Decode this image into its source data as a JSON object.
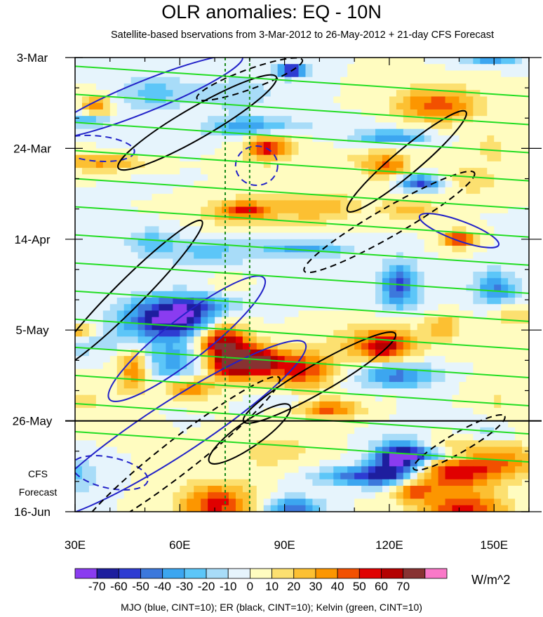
{
  "chart_data": {
    "type": "heatmap",
    "title": "OLR anomalies: EQ - 10N",
    "subtitle": "Satellite-based bservations from 3-Mar-2012 to 26-May-2012 + 21-day CFS Forecast",
    "x_ticks": [
      "30E",
      "60E",
      "90E",
      "120E",
      "150E"
    ],
    "x_tick_values": [
      30,
      60,
      90,
      120,
      150
    ],
    "xlim": [
      30,
      160
    ],
    "y_ticks": [
      "3-Mar",
      "24-Mar",
      "14-Apr",
      "5-May",
      "26-May",
      "16-Jun"
    ],
    "y_tick_values": [
      0,
      21,
      42,
      63,
      84,
      105
    ],
    "ylim": [
      0,
      105
    ],
    "observation_end_day": 84,
    "forecast_label": [
      "CFS",
      "Forecast"
    ],
    "colorbar_labels": [
      "-70",
      "-60",
      "-50",
      "-40",
      "-30",
      "-20",
      "-10",
      "0",
      "10",
      "20",
      "30",
      "40",
      "50",
      "60",
      "70"
    ],
    "colorbar_values": [
      -70,
      -60,
      -50,
      -40,
      -30,
      -20,
      -10,
      0,
      10,
      20,
      30,
      40,
      50,
      60,
      70
    ],
    "colorbar_colors": [
      "#8a3cf0",
      "#1e1e9e",
      "#2e3cd2",
      "#3c78dc",
      "#3ca6f0",
      "#5cc6f8",
      "#a8dcf8",
      "#e6f4fc",
      "#fffcc0",
      "#fce070",
      "#fcc032",
      "#fc9600",
      "#f25000",
      "#e00000",
      "#b40000",
      "#883232",
      "#fa78c8"
    ],
    "units": "W/m^2",
    "reference_lines_x": [
      73,
      80
    ],
    "contour_legend": "MJO (blue, CINT=10); ER (black, CINT=10); Kelvin (green, CINT=10)",
    "mjo_color": "#2222c8",
    "er_color": "#000000",
    "kelvin_color": "#22dd22"
  }
}
